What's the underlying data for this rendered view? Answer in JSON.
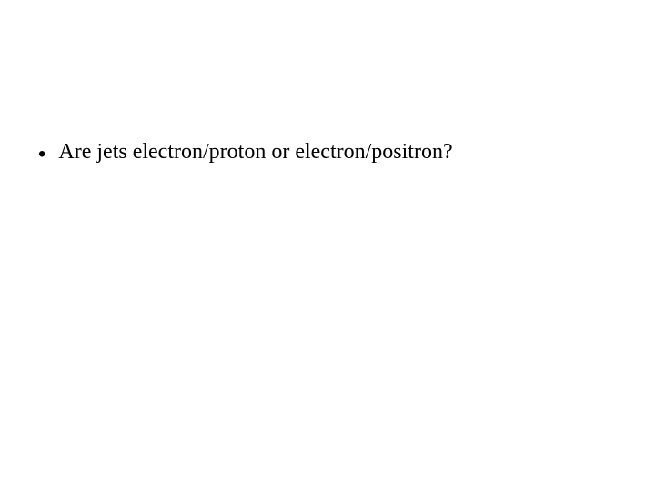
{
  "slide": {
    "bullets": [
      {
        "text": "Are jets electron/proton or electron/positron?"
      }
    ],
    "background_color": "#ffffff",
    "text_color": "#000000",
    "font_family": "Times New Roman",
    "font_size_pt": 24,
    "bullet_marker": "•"
  }
}
